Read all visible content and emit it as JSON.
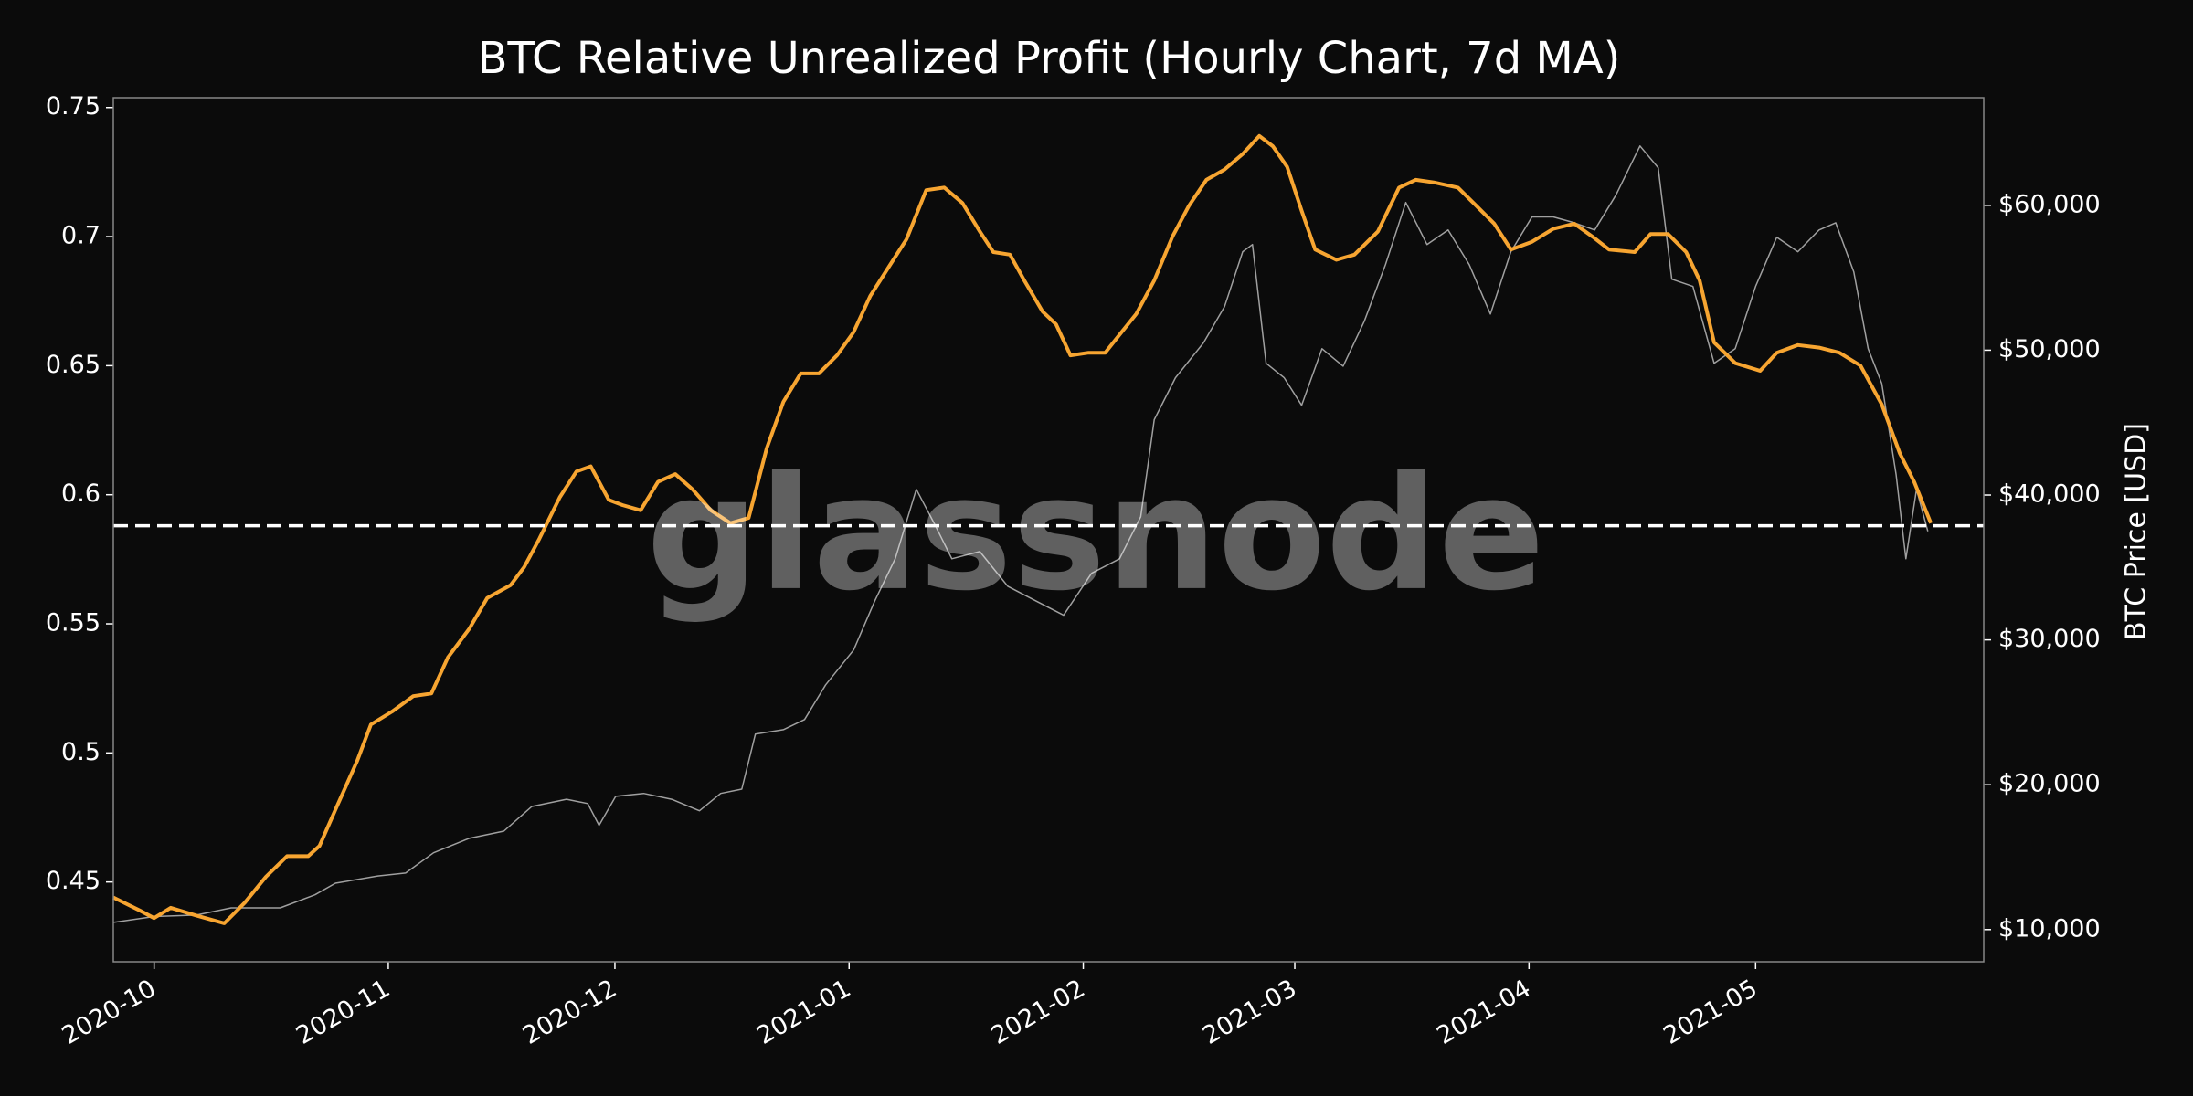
{
  "chart_data": {
    "type": "line",
    "title": "BTC Relative Unrealized Profit (Hourly Chart, 7d MA)",
    "y2_label": "BTC Price [USD]",
    "watermark": "glassnode",
    "background": "#0b0b0b",
    "xlim": [
      -5.4,
      242.2
    ],
    "xticks": [
      {
        "value": 0,
        "label": "2020-10"
      },
      {
        "value": 31,
        "label": "2020-11"
      },
      {
        "value": 61,
        "label": "2020-12"
      },
      {
        "value": 92,
        "label": "2021-01"
      },
      {
        "value": 123,
        "label": "2021-02"
      },
      {
        "value": 151,
        "label": "2021-03"
      },
      {
        "value": 182,
        "label": "2021-04"
      },
      {
        "value": 212,
        "label": "2021-05"
      }
    ],
    "ylim": [
      0.4191,
      0.7538
    ],
    "yticks": [
      0.45,
      0.5,
      0.55,
      0.6,
      0.65,
      0.7,
      0.75
    ],
    "y2lim": [
      7780,
      67430
    ],
    "y2ticks": [
      {
        "value": 10000,
        "label": "$10,000"
      },
      {
        "value": 20000,
        "label": "$20,000"
      },
      {
        "value": 30000,
        "label": "$30,000"
      },
      {
        "value": 40000,
        "label": "$40,000"
      },
      {
        "value": 50000,
        "label": "$50,000"
      },
      {
        "value": 60000,
        "label": "$60,000"
      }
    ],
    "hline": {
      "value": 0.588,
      "color": "#ffffff",
      "style": "dashed"
    },
    "series": [
      {
        "color": "#a0a0a0",
        "axis": "y2",
        "width": 1.5,
        "x": [
          -5.4,
          0,
          5.6,
          10.2,
          16.7,
          21.3,
          24,
          29.6,
          33.3,
          37,
          41.7,
          46.3,
          50,
          54.6,
          57.4,
          58.9,
          61.1,
          64.8,
          68.5,
          72.2,
          75,
          77.8,
          79.6,
          83.3,
          86.1,
          88.9,
          92.6,
          95.4,
          98.1,
          100.9,
          103.3,
          105.6,
          109.3,
          113,
          116.7,
          120.4,
          124.1,
          127.8,
          130.6,
          132.4,
          135.2,
          138.9,
          141.7,
          144.1,
          145.4,
          147.2,
          149.6,
          151.9,
          154.6,
          157.4,
          160.2,
          163,
          165.7,
          168.5,
          171.3,
          174.1,
          176.9,
          179.6,
          182.4,
          185.2,
          188,
          190.7,
          193.5,
          196.7,
          199.1,
          200.9,
          203.7,
          206.5,
          209.3,
          212,
          214.8,
          217.6,
          220.4,
          222.6,
          225,
          226.9,
          228.7,
          230.6,
          231.9,
          233.3,
          234.8
        ],
        "values": [
          10500,
          10900,
          11000,
          11500,
          11500,
          12400,
          13200,
          13700,
          13900,
          15300,
          16300,
          16800,
          18500,
          19000,
          18700,
          17200,
          19200,
          19400,
          19000,
          18200,
          19400,
          19700,
          23500,
          23800,
          24500,
          26900,
          29300,
          32700,
          35600,
          40400,
          38000,
          35600,
          36100,
          33700,
          32700,
          31700,
          34600,
          35600,
          38500,
          45200,
          48100,
          50500,
          53000,
          56800,
          57300,
          49100,
          48100,
          46200,
          50100,
          48900,
          52000,
          55900,
          60200,
          57300,
          58300,
          55900,
          52500,
          56800,
          59200,
          59200,
          58800,
          58300,
          60700,
          64100,
          62600,
          54900,
          54400,
          49100,
          50100,
          54400,
          57800,
          56800,
          58300,
          58800,
          55400,
          50100,
          47700,
          41400,
          35600,
          40400,
          37500
        ]
      },
      {
        "color": "#f7a531",
        "axis": "y",
        "width": 4,
        "x": [
          -5.4,
          -1.9,
          0,
          2.2,
          5.6,
          9.3,
          12,
          14.8,
          17.6,
          20.4,
          21.9,
          24,
          26.9,
          28.7,
          31.5,
          34.3,
          36.7,
          38.9,
          41.7,
          44.1,
          47.2,
          49,
          51,
          53.7,
          55.9,
          57.8,
          60.2,
          62,
          64.4,
          66.7,
          69,
          71.3,
          73.7,
          76.3,
          78.7,
          81.1,
          83.3,
          85.6,
          88,
          90.4,
          92.6,
          94.8,
          97.2,
          99.6,
          102.2,
          104.6,
          107,
          109.3,
          111.1,
          113.3,
          115.2,
          117.6,
          119.4,
          121.3,
          123.7,
          125.9,
          127.8,
          130,
          132.4,
          134.8,
          137,
          139.3,
          141.7,
          144.1,
          146.3,
          148.1,
          150,
          151.9,
          153.7,
          156.5,
          158.9,
          162,
          164.8,
          167,
          169.4,
          172.6,
          175,
          177.4,
          179.6,
          182.4,
          185.2,
          188,
          190.4,
          192.6,
          196,
          198.1,
          200.4,
          202.8,
          204.6,
          206.5,
          209.3,
          212.6,
          214.8,
          217.6,
          220.4,
          223.1,
          225.9,
          228.7,
          231.1,
          233,
          235.2
        ],
        "values": [
          0.444,
          0.439,
          0.436,
          0.44,
          0.437,
          0.434,
          0.442,
          0.452,
          0.46,
          0.46,
          0.464,
          0.478,
          0.497,
          0.511,
          0.516,
          0.522,
          0.523,
          0.537,
          0.548,
          0.56,
          0.565,
          0.572,
          0.583,
          0.599,
          0.609,
          0.611,
          0.598,
          0.596,
          0.594,
          0.605,
          0.608,
          0.602,
          0.594,
          0.589,
          0.591,
          0.618,
          0.636,
          0.647,
          0.647,
          0.654,
          0.663,
          0.677,
          0.688,
          0.699,
          0.718,
          0.719,
          0.713,
          0.702,
          0.694,
          0.693,
          0.683,
          0.671,
          0.666,
          0.654,
          0.655,
          0.655,
          0.662,
          0.67,
          0.683,
          0.7,
          0.712,
          0.722,
          0.726,
          0.732,
          0.739,
          0.735,
          0.727,
          0.71,
          0.695,
          0.691,
          0.693,
          0.702,
          0.719,
          0.722,
          0.721,
          0.719,
          0.712,
          0.705,
          0.695,
          0.698,
          0.703,
          0.705,
          0.7,
          0.695,
          0.694,
          0.701,
          0.701,
          0.694,
          0.683,
          0.659,
          0.651,
          0.648,
          0.655,
          0.658,
          0.657,
          0.655,
          0.65,
          0.635,
          0.616,
          0.605,
          0.589
        ]
      }
    ]
  }
}
